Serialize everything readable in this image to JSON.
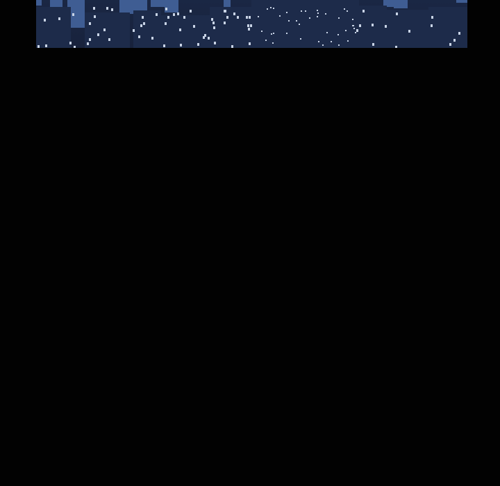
{
  "panel": {
    "scene": "night-city-skyline",
    "colors": {
      "sky": "#3f5d93",
      "building_dark": "#15203a",
      "building_mid": "#1d2b4a",
      "window": "#c9d4e6",
      "background": "#020202"
    }
  }
}
